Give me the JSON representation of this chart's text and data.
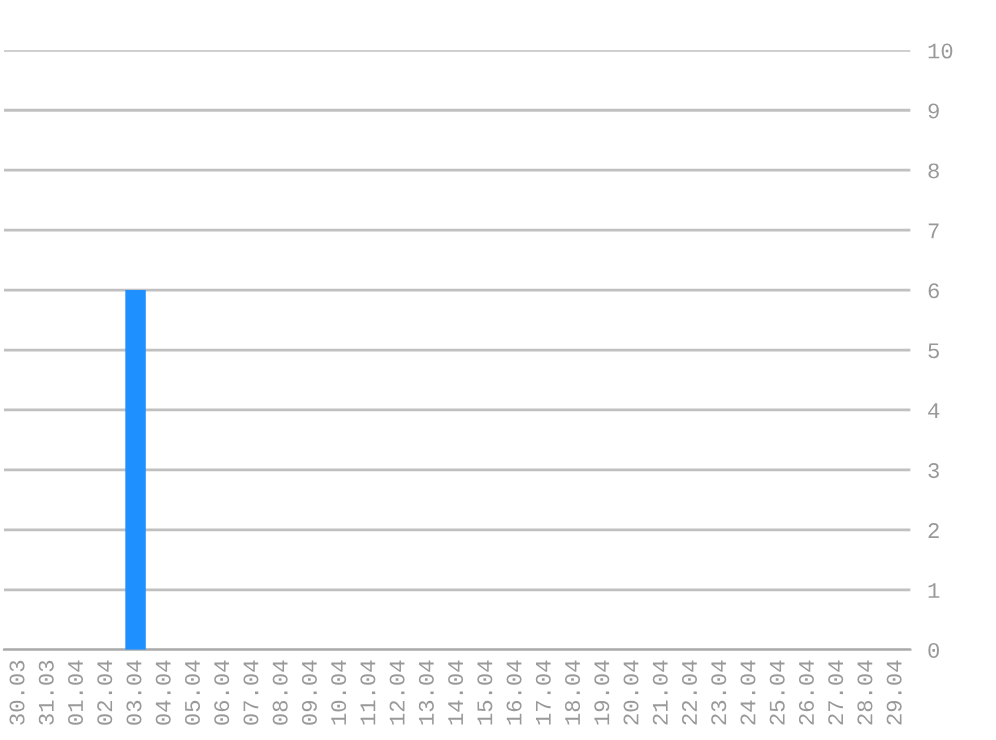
{
  "chart_data": {
    "type": "bar",
    "categories": [
      "30.03",
      "31.03",
      "01.04",
      "02.04",
      "03.04",
      "04.04",
      "05.04",
      "06.04",
      "07.04",
      "08.04",
      "09.04",
      "10.04",
      "11.04",
      "12.04",
      "13.04",
      "14.04",
      "15.04",
      "16.04",
      "17.04",
      "18.04",
      "19.04",
      "20.04",
      "21.04",
      "22.04",
      "23.04",
      "24.04",
      "25.04",
      "26.04",
      "27.04",
      "28.04",
      "29.04"
    ],
    "values": [
      0,
      0,
      0,
      0,
      6,
      0,
      0,
      0,
      0,
      0,
      0,
      0,
      0,
      0,
      0,
      0,
      0,
      0,
      0,
      0,
      0,
      0,
      0,
      0,
      0,
      0,
      0,
      0,
      0,
      0,
      0
    ],
    "color": "#1e90ff",
    "ylim": [
      0,
      10
    ],
    "yticks": [
      0,
      1,
      2,
      3,
      4,
      5,
      6,
      7,
      8,
      9,
      10
    ],
    "grid": "y",
    "legend": false
  }
}
